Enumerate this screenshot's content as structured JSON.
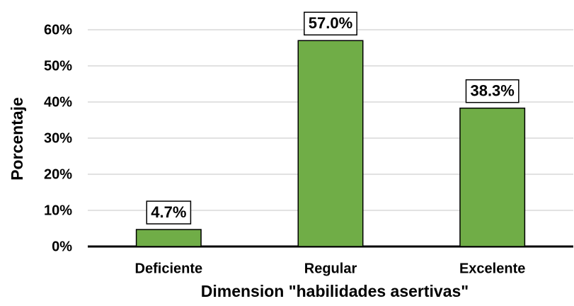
{
  "chart_data": {
    "type": "bar",
    "x_label": "Dimension \"habilidades asertivas\"",
    "y_label": "Porcentaje",
    "categories": [
      "Deficiente",
      "Regular",
      "Excelente"
    ],
    "values": [
      4.7,
      57.0,
      38.3
    ],
    "value_labels": [
      "4.7%",
      "57.0%",
      "38.3%"
    ],
    "color": "#70ad47",
    "ylim": [
      0,
      60
    ],
    "yticks": [
      {
        "value": 0,
        "label": "0%"
      },
      {
        "value": 10,
        "label": "10%"
      },
      {
        "value": 20,
        "label": "20%"
      },
      {
        "value": 30,
        "label": "30%"
      },
      {
        "value": 40,
        "label": "40%"
      },
      {
        "value": 50,
        "label": "50%"
      },
      {
        "value": 60,
        "label": "60%"
      }
    ],
    "grid": true
  }
}
